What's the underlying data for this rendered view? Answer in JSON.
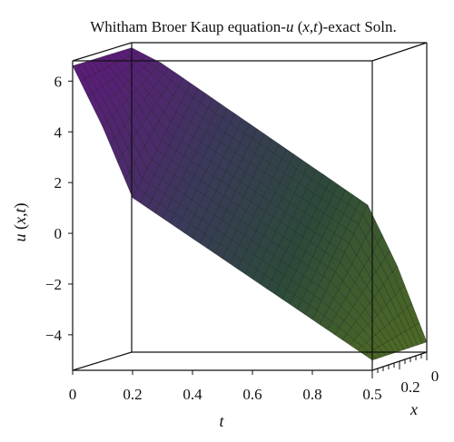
{
  "chart_data": {
    "type": "surface3d",
    "title": "Whitham Broer Kaup equation-u (x,t)-exact Soln.",
    "title_parts": {
      "pre": "Whitham Broer Kaup equation-",
      "italic": "u",
      "mid": " (",
      "italic2": "x,t",
      "post": ")-exact Soln."
    },
    "xlabel": "t",
    "ylabel": "x",
    "zlabel": "u (x,t)",
    "t_ticks": [
      "0",
      "0.2",
      "0.4",
      "0.6",
      "0.8",
      "0.5"
    ],
    "x_ticks": [
      "0.2",
      "0"
    ],
    "z_ticks": [
      "6",
      "4",
      "2",
      "0",
      "−2",
      "−4"
    ],
    "t_range": [
      0,
      1
    ],
    "x_range": [
      0,
      0.3
    ],
    "z_range": [
      -5.4,
      6.8
    ],
    "surface": {
      "t": [
        0,
        0.1,
        0.2,
        0.3,
        0.4,
        0.5,
        0.6,
        0.7,
        0.8,
        0.9,
        1.0
      ],
      "u_front_edge": [
        6.6,
        4.2,
        1.4,
        0.6,
        -0.2,
        -1.0,
        -1.8,
        -2.6,
        -3.4,
        -4.2,
        -5.0
      ],
      "u_back_edge": [
        6.6,
        6.0,
        5.2,
        4.4,
        3.6,
        2.8,
        2.0,
        1.2,
        0.4,
        -2.0,
        -5.0
      ]
    },
    "colormap": [
      "#5a1d78",
      "#3a3a5a",
      "#2c4a3a",
      "#4d6a24"
    ],
    "grid": false
  }
}
